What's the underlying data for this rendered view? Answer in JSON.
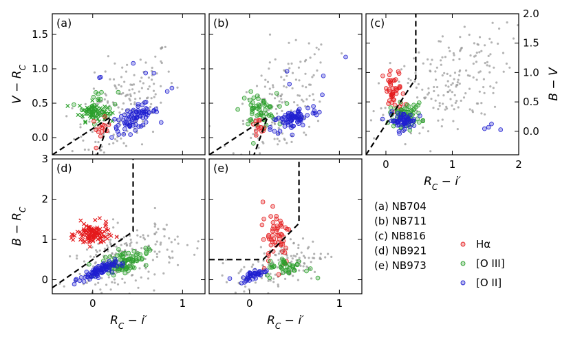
{
  "chart_data": {
    "type": "scatter",
    "colors": {
      "halpha": "#e41a1c",
      "oiii": "#2ca02c",
      "oii": "#1f1fd0",
      "field": "#9a9a9a",
      "boundary": "#000000"
    },
    "series_legend": [
      {
        "key": "halpha",
        "label": "Hα"
      },
      {
        "key": "oiii",
        "label": "[O III]"
      },
      {
        "key": "oii",
        "label": "[O II]"
      }
    ],
    "filter_legend": [
      "(a) NB704",
      "(b) NB711",
      "(c) NB816",
      "(d) NB921",
      "(e) NB973"
    ],
    "panels": [
      {
        "id": "a",
        "label": "(a)",
        "xlim": [
          -0.45,
          1.25
        ],
        "ylim": [
          -0.25,
          1.8
        ],
        "xticks": [
          0,
          1
        ],
        "xticklabels": [
          "",
          ""
        ],
        "yticks": [
          0.0,
          0.5,
          1.0,
          1.5
        ],
        "yticklabels": [
          "0.0",
          "0.5",
          "1.0",
          "1.5"
        ],
        "xlabel": "",
        "ylabel": "V − R",
        "boundary": [
          [
            -0.45,
            -0.25
          ],
          [
            0.2,
            0.3
          ],
          [
            0.05,
            -0.25
          ]
        ],
        "groups": [
          {
            "key": "field",
            "n": 170,
            "cx": 0.35,
            "cy": 0.45,
            "sx": 0.28,
            "sy": 0.35,
            "slope": 0.8
          },
          {
            "key": "oiii",
            "n": 60,
            "cx": 0.0,
            "cy": 0.38,
            "sx": 0.08,
            "sy": 0.07,
            "marker": "x"
          },
          {
            "key": "oiii",
            "n": 30,
            "cx": 0.08,
            "cy": 0.45,
            "sx": 0.1,
            "sy": 0.12
          },
          {
            "key": "halpha",
            "n": 14,
            "cx": 0.09,
            "cy": 0.12,
            "sx": 0.05,
            "sy": 0.08
          },
          {
            "key": "oii",
            "n": 80,
            "cx": 0.47,
            "cy": 0.28,
            "sx": 0.13,
            "sy": 0.08,
            "slope": 0.5
          },
          {
            "key": "oii",
            "n": 8,
            "cx": 0.6,
            "cy": 0.9,
            "sx": 0.25,
            "sy": 0.35
          }
        ]
      },
      {
        "id": "b",
        "label": "(b)",
        "xlim": [
          -0.45,
          1.25
        ],
        "ylim": [
          -0.25,
          1.8
        ],
        "xticks": [
          0,
          1
        ],
        "xticklabels": [
          "",
          ""
        ],
        "yticks": [
          0.0,
          0.5,
          1.0,
          1.5
        ],
        "yticklabels": [
          "",
          "",
          "",
          ""
        ],
        "xlabel": "",
        "ylabel": "",
        "boundary": [
          [
            -0.45,
            -0.25
          ],
          [
            0.2,
            0.3
          ],
          [
            0.05,
            -0.25
          ]
        ],
        "groups": [
          {
            "key": "field",
            "n": 160,
            "cx": 0.35,
            "cy": 0.45,
            "sx": 0.28,
            "sy": 0.35,
            "slope": 0.8
          },
          {
            "key": "oiii",
            "n": 55,
            "cx": 0.1,
            "cy": 0.4,
            "sx": 0.1,
            "sy": 0.12
          },
          {
            "key": "halpha",
            "n": 12,
            "cx": 0.09,
            "cy": 0.12,
            "sx": 0.05,
            "sy": 0.08
          },
          {
            "key": "oii",
            "n": 75,
            "cx": 0.5,
            "cy": 0.28,
            "sx": 0.13,
            "sy": 0.08,
            "slope": 0.5
          },
          {
            "key": "oii",
            "n": 6,
            "cx": 0.7,
            "cy": 0.9,
            "sx": 0.25,
            "sy": 0.35
          }
        ]
      },
      {
        "id": "c",
        "label": "(c)",
        "xlim": [
          -0.3,
          2.0
        ],
        "ylim": [
          -0.4,
          2.0
        ],
        "xticks": [
          0,
          1,
          2
        ],
        "xticklabels": [
          "0",
          "1",
          "2"
        ],
        "yticks": [
          0.0,
          0.5,
          1.0,
          1.5,
          2.0
        ],
        "yticklabels": [
          "0.0",
          "0.5",
          "1.0",
          "1.5",
          "2.0"
        ],
        "xlabel": "R − i′",
        "ylabel": "B − V",
        "ylabel_side": "right",
        "boundary": [
          [
            -0.3,
            -0.4
          ],
          [
            0.45,
            0.9
          ],
          [
            0.45,
            2.0
          ]
        ],
        "groups": [
          {
            "key": "field",
            "n": 200,
            "cx": 0.9,
            "cy": 0.8,
            "sx": 0.5,
            "sy": 0.45,
            "slope": 0.6
          },
          {
            "key": "halpha",
            "n": 45,
            "cx": 0.12,
            "cy": 0.65,
            "sx": 0.08,
            "sy": 0.2
          },
          {
            "key": "oiii",
            "n": 60,
            "cx": 0.3,
            "cy": 0.28,
            "sx": 0.12,
            "sy": 0.1
          },
          {
            "key": "oii",
            "n": 60,
            "cx": 0.25,
            "cy": 0.18,
            "sx": 0.1,
            "sy": 0.07
          },
          {
            "key": "oii",
            "n": 4,
            "cx": 1.6,
            "cy": 0.05,
            "sx": 0.2,
            "sy": 0.05
          }
        ]
      },
      {
        "id": "d",
        "label": "(d)",
        "xlim": [
          -0.45,
          1.25
        ],
        "ylim": [
          -0.35,
          3.0
        ],
        "xticks": [
          0,
          1
        ],
        "xticklabels": [
          "0",
          "1"
        ],
        "yticks": [
          0,
          1,
          2,
          3
        ],
        "yticklabels": [
          "0",
          "1",
          "2",
          "3"
        ],
        "xlabel": "R − i′",
        "ylabel": "B − R",
        "boundary": [
          [
            -0.45,
            -0.2
          ],
          [
            0.45,
            1.2
          ],
          [
            0.45,
            3.0
          ]
        ],
        "groups": [
          {
            "key": "field",
            "n": 230,
            "cx": 0.35,
            "cy": 0.5,
            "sx": 0.3,
            "sy": 0.4,
            "slope": 0.7
          },
          {
            "key": "halpha",
            "n": 110,
            "cx": 0.0,
            "cy": 1.12,
            "sx": 0.09,
            "sy": 0.14,
            "marker": "x"
          },
          {
            "key": "oiii",
            "n": 90,
            "cx": 0.35,
            "cy": 0.45,
            "sx": 0.13,
            "sy": 0.13,
            "slope": 0.6
          },
          {
            "key": "oii",
            "n": 90,
            "cx": 0.05,
            "cy": 0.2,
            "sx": 0.1,
            "sy": 0.07,
            "slope": 0.8
          }
        ]
      },
      {
        "id": "e",
        "label": "(e)",
        "xlim": [
          -0.45,
          1.25
        ],
        "ylim": [
          -0.35,
          3.0
        ],
        "xticks": [
          0,
          1
        ],
        "xticklabels": [
          "0",
          "1"
        ],
        "yticks": [
          0,
          1,
          2,
          3
        ],
        "yticklabels": [
          "",
          "",
          "",
          ""
        ],
        "xlabel": "R − i′",
        "ylabel": "",
        "boundary": [
          [
            -0.45,
            0.5
          ],
          [
            0.15,
            0.5
          ],
          [
            0.55,
            1.4
          ],
          [
            0.55,
            3.0
          ]
        ],
        "groups": [
          {
            "key": "field",
            "n": 150,
            "cx": 0.35,
            "cy": 0.35,
            "sx": 0.25,
            "sy": 0.28,
            "slope": 0.6
          },
          {
            "key": "halpha",
            "n": 55,
            "cx": 0.3,
            "cy": 1.15,
            "sx": 0.08,
            "sy": 0.4
          },
          {
            "key": "oiii",
            "n": 40,
            "cx": 0.42,
            "cy": 0.3,
            "sx": 0.12,
            "sy": 0.12
          },
          {
            "key": "oii",
            "n": 40,
            "cx": 0.05,
            "cy": 0.12,
            "sx": 0.08,
            "sy": 0.06,
            "slope": 0.8
          }
        ]
      }
    ]
  }
}
